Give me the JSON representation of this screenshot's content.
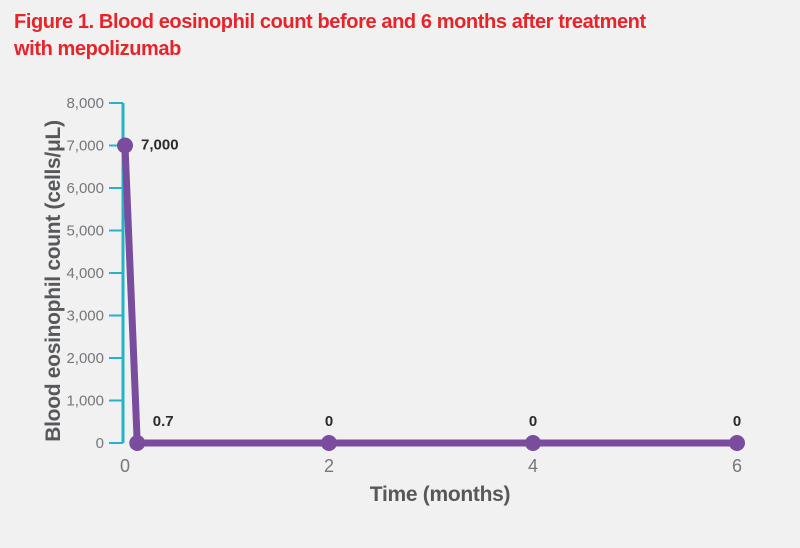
{
  "figure": {
    "title_lines": [
      "Figure 1. Blood eosinophil count before and 6 months after treatment",
      "with mepolizumab"
    ],
    "title_color": "#e8232a"
  },
  "chart_data": {
    "type": "line",
    "title": "Figure 1. Blood eosinophil count before and 6 months after treatment with mepolizumab",
    "xlabel": "Time (months)",
    "ylabel": "Blood eosinophil count (cells/μL)",
    "x_range": [
      0,
      6
    ],
    "y_range": [
      0,
      8000
    ],
    "x_ticks": [
      {
        "v": 0,
        "label": "0"
      },
      {
        "v": 2,
        "label": "2"
      },
      {
        "v": 4,
        "label": "4"
      },
      {
        "v": 6,
        "label": "6"
      }
    ],
    "y_ticks": [
      {
        "v": 0,
        "label": "0"
      },
      {
        "v": 1000,
        "label": "1,000"
      },
      {
        "v": 2000,
        "label": "2,000"
      },
      {
        "v": 3000,
        "label": "3,000"
      },
      {
        "v": 4000,
        "label": "4,000"
      },
      {
        "v": 5000,
        "label": "5,000"
      },
      {
        "v": 6000,
        "label": "6,000"
      },
      {
        "v": 7000,
        "label": "7,000"
      },
      {
        "v": 8000,
        "label": "8,000"
      }
    ],
    "grid": false,
    "legend": "none",
    "series": [
      {
        "name": "Blood eosinophil count",
        "color": "#7a4c9e",
        "points": [
          {
            "x": 0,
            "y": 7000,
            "label": "7,000",
            "label_pos": "right"
          },
          {
            "x": 0.12,
            "y": 0.7,
            "label": "0.7",
            "label_pos": "above-right"
          },
          {
            "x": 2,
            "y": 0,
            "label": "0",
            "label_pos": "above"
          },
          {
            "x": 4,
            "y": 0,
            "label": "0",
            "label_pos": "above"
          },
          {
            "x": 6,
            "y": 0,
            "label": "0",
            "label_pos": "above"
          }
        ]
      }
    ],
    "colors": {
      "axis": "#25b4c7",
      "tick_labels": "#75777a",
      "data_labels": "#2b2a2c",
      "axis_titles": "#57585a",
      "background": "#f1f1f2"
    }
  }
}
